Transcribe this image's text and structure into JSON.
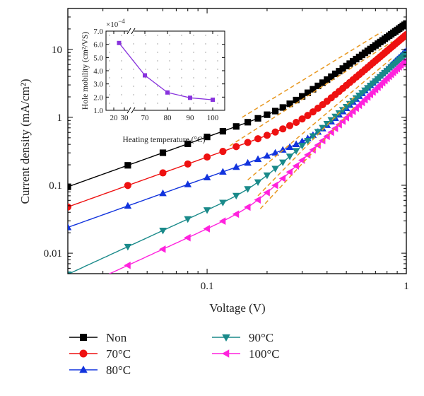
{
  "chart_data": [
    {
      "type": "line",
      "xlabel": "Voltage (V)",
      "ylabel": "Current density (mA/cm²)",
      "xscale": "log",
      "yscale": "log",
      "xlim": [
        0.02,
        1.0
      ],
      "ylim": [
        0.005,
        40
      ],
      "x_ticks": [
        0.1,
        1
      ],
      "x_tick_labels": [
        "0.1",
        "1"
      ],
      "y_ticks": [
        0.01,
        0.1,
        1,
        10
      ],
      "y_tick_labels": [
        "0.01",
        "0.1",
        "1",
        "10"
      ],
      "legend_position": "bottom",
      "series": [
        {
          "name": "Non",
          "color": "#000000",
          "marker": "square",
          "y_at_0_02": 0.095,
          "y_at_1": 24,
          "knee_x": 0.25
        },
        {
          "name": "70°C",
          "color": "#ee1111",
          "marker": "circle",
          "y_at_0_02": 0.048,
          "y_at_1": 16.5,
          "knee_x": 0.3
        },
        {
          "name": "80°C",
          "color": "#1133dd",
          "marker": "triangle-up",
          "y_at_0_02": 0.024,
          "y_at_1": 9.6,
          "knee_x": 0.35
        },
        {
          "name": "90°C",
          "color": "#1a8a8a",
          "marker": "triangle-down",
          "y_at_0_02": 0.0049,
          "y_at_1": 8.6,
          "knee_x": 0.17
        },
        {
          "name": "100°C",
          "color": "#ff22dd",
          "marker": "triangle-left",
          "y_at_0_02": 0.0026,
          "y_at_1": 7.0,
          "knee_x": 0.17
        }
      ],
      "fit_lines": [
        {
          "color": "#e89820",
          "style": "dashed",
          "x": [
            0.15,
            0.75
          ],
          "y": [
            1.0,
            18.0
          ]
        },
        {
          "color": "#e89820",
          "style": "dashed",
          "x": [
            0.13,
            0.85
          ],
          "y": [
            0.38,
            13.0
          ]
        },
        {
          "color": "#e89820",
          "style": "dashed",
          "x": [
            0.16,
            0.85
          ],
          "y": [
            0.12,
            7.5
          ]
        },
        {
          "color": "#e89820",
          "style": "dashed",
          "x": [
            0.18,
            0.55
          ],
          "y": [
            0.07,
            2.0
          ]
        },
        {
          "color": "#e89820",
          "style": "dashed",
          "x": [
            0.185,
            0.56
          ],
          "y": [
            0.045,
            1.5
          ]
        }
      ]
    },
    {
      "type": "line",
      "position": "inset-top-left",
      "xlabel": "Heating temperature (°C)",
      "ylabel": "Hole mobility (cm²/VS)",
      "y_multiplier_label": "×10",
      "y_multiplier_exponent": "−4",
      "x_tick_labels": [
        "20",
        "30",
        "70",
        "80",
        "90",
        "100"
      ],
      "y_ticks": [
        1.0,
        2.0,
        3.0,
        4.0,
        5.0,
        6.0,
        7.0
      ],
      "y_tick_labels": [
        "1.0",
        "2.0",
        "3.0",
        "4.0",
        "5.0",
        "6.0",
        "7.0"
      ],
      "ylim": [
        1.0,
        7.0
      ],
      "axis_break": true,
      "grid": "dotted",
      "series": [
        {
          "color": "#8833dd",
          "marker": "square",
          "x": [
            25,
            70,
            80,
            90,
            100
          ],
          "y": [
            6.1,
            3.65,
            2.35,
            1.95,
            1.8
          ]
        }
      ]
    }
  ]
}
